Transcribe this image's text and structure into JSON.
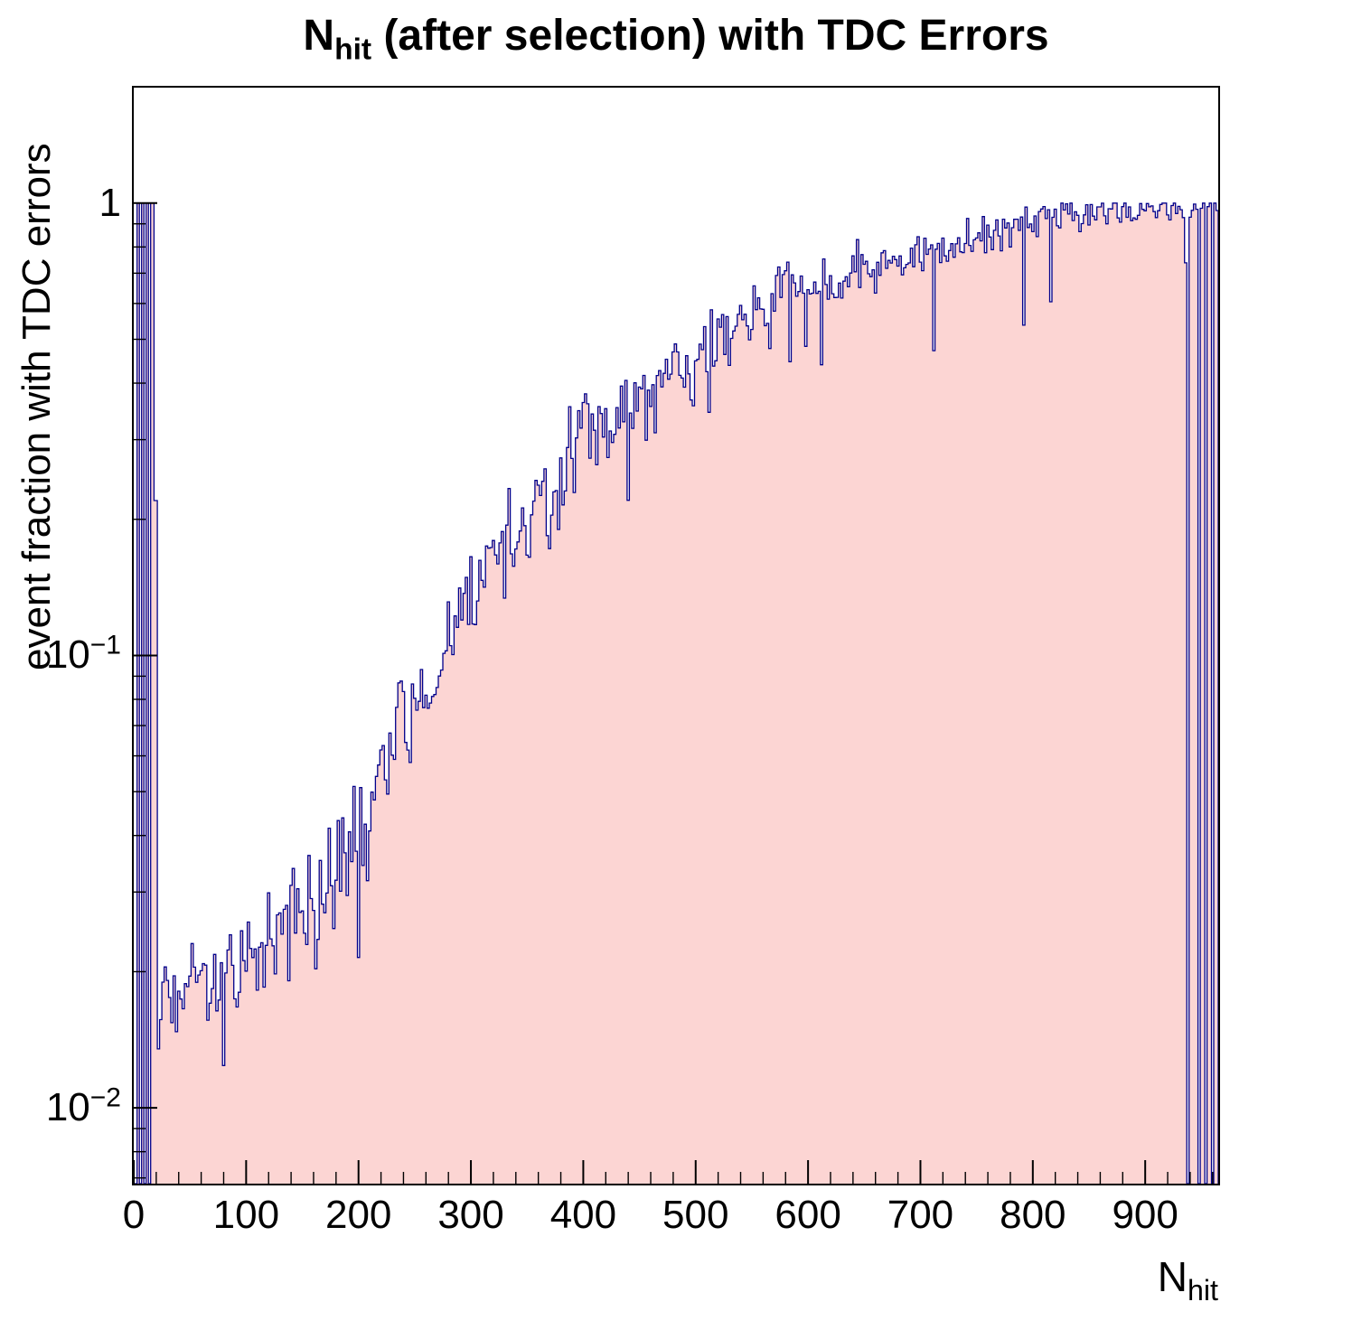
{
  "chart_data": {
    "type": "histogram",
    "title": "N_hit (after selection) with TDC Errors",
    "title_parts": {
      "main": "N",
      "sub": "hit",
      "rest": " (after selection) with TDC Errors"
    },
    "xlabel": "N_hit",
    "xlabel_parts": {
      "main": "N",
      "sub": "hit"
    },
    "ylabel": "event fraction with TDC errors",
    "x_range": [
      0,
      965
    ],
    "y_range": [
      0.0068,
      1.8
    ],
    "y_scale": "log",
    "grid": false,
    "legend": "none",
    "bin_width": 2,
    "x_major_ticks": [
      0,
      100,
      200,
      300,
      400,
      500,
      600,
      700,
      800,
      900
    ],
    "x_minor_step": 20,
    "y_major_ticks": [
      {
        "value": 1,
        "mantissa": "1",
        "exponent": ""
      },
      {
        "value": 0.1,
        "mantissa": "10",
        "exponent": "−1"
      },
      {
        "value": 0.01,
        "mantissa": "10",
        "exponent": "−2"
      }
    ],
    "colors": {
      "fill": "#fcd5d3",
      "line": "#00008b",
      "axis": "#000000",
      "text": "#000000"
    },
    "low_x_bins": [
      [
        0,
        3,
        null
      ],
      [
        3,
        2,
        1
      ],
      [
        5,
        2,
        null
      ],
      [
        7,
        2,
        1
      ],
      [
        9,
        2,
        null
      ],
      [
        11,
        2,
        1
      ],
      [
        13,
        2,
        null
      ],
      [
        15,
        3,
        1
      ],
      [
        18,
        3,
        0.22
      ]
    ],
    "baseline_start": 21,
    "right_dropout_ranges": [
      [
        938,
        940
      ],
      [
        948,
        950
      ],
      [
        954,
        956
      ],
      [
        960,
        962
      ]
    ],
    "trend_points": [
      [
        21,
        0.013
      ],
      [
        25,
        0.018
      ],
      [
        35,
        0.019
      ],
      [
        50,
        0.019
      ],
      [
        70,
        0.02
      ],
      [
        90,
        0.02
      ],
      [
        110,
        0.022
      ],
      [
        130,
        0.024
      ],
      [
        150,
        0.028
      ],
      [
        170,
        0.032
      ],
      [
        190,
        0.04
      ],
      [
        210,
        0.05
      ],
      [
        230,
        0.062
      ],
      [
        250,
        0.075
      ],
      [
        265,
        0.088
      ],
      [
        275,
        0.105
      ],
      [
        290,
        0.125
      ],
      [
        310,
        0.15
      ],
      [
        330,
        0.175
      ],
      [
        350,
        0.2
      ],
      [
        370,
        0.225
      ],
      [
        390,
        0.27
      ],
      [
        405,
        0.3
      ],
      [
        420,
        0.315
      ],
      [
        440,
        0.34
      ],
      [
        460,
        0.38
      ],
      [
        480,
        0.43
      ],
      [
        500,
        0.46
      ],
      [
        520,
        0.5
      ],
      [
        540,
        0.54
      ],
      [
        560,
        0.58
      ],
      [
        575,
        0.66
      ],
      [
        585,
        0.7
      ],
      [
        595,
        0.63
      ],
      [
        615,
        0.65
      ],
      [
        635,
        0.68
      ],
      [
        655,
        0.71
      ],
      [
        675,
        0.74
      ],
      [
        695,
        0.77
      ],
      [
        715,
        0.79
      ],
      [
        735,
        0.82
      ],
      [
        755,
        0.85
      ],
      [
        775,
        0.88
      ],
      [
        795,
        0.91
      ],
      [
        815,
        0.93
      ],
      [
        835,
        0.94
      ],
      [
        855,
        0.95
      ],
      [
        875,
        0.96
      ],
      [
        895,
        0.965
      ],
      [
        915,
        0.97
      ],
      [
        935,
        0.98
      ],
      [
        965,
        1.0
      ]
    ],
    "noise": {
      "seed": 20240613,
      "sigma_profile": [
        [
          -2.1,
          0.08
        ],
        [
          -1.4,
          0.18
        ],
        [
          -0.8,
          0.17
        ],
        [
          -0.35,
          0.1
        ],
        [
          -0.05,
          0.045
        ],
        [
          0.0,
          0.03
        ]
      ],
      "spike_prob": 0.05,
      "spike_extra": 0.35
    }
  }
}
